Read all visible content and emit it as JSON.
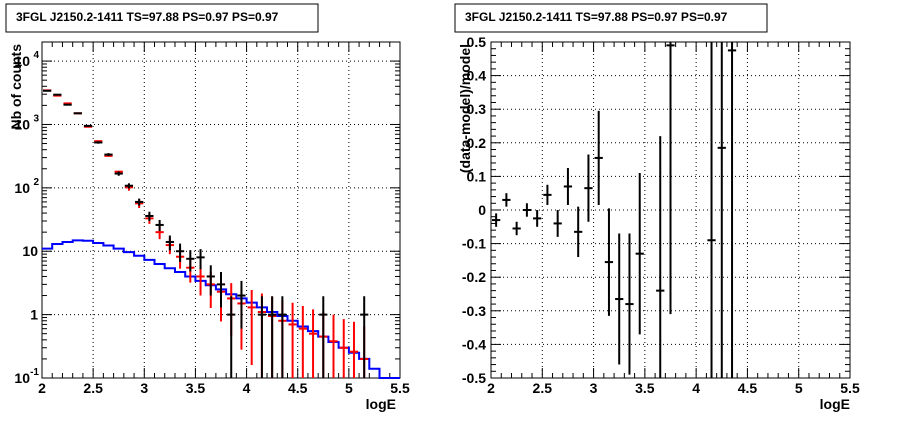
{
  "chart_data": [
    {
      "type": "line",
      "title": "3FGL J2150.2-1411 TS=97.88 PS=0.97 PS=0.97",
      "xlabel": "logE",
      "ylabel": "Nb of counts",
      "xlim": [
        2,
        5.5
      ],
      "ylim": [
        0.1,
        20000
      ],
      "yscale": "log",
      "grid": true,
      "xticks": [
        "2",
        "2.5",
        "3",
        "3.5",
        "4",
        "4.5",
        "5",
        "5.5"
      ],
      "yticks": [
        {
          "value": 0.1,
          "label": "10",
          "exp": "-1"
        },
        {
          "value": 1,
          "label": "1",
          "exp": ""
        },
        {
          "value": 10,
          "label": "10",
          "exp": ""
        },
        {
          "value": 100,
          "label": "10",
          "exp": "2"
        },
        {
          "value": 1000,
          "label": "10",
          "exp": "3"
        },
        {
          "value": 10000,
          "label": "10",
          "exp": "4"
        }
      ],
      "bin_width": 0.1,
      "series": [
        {
          "color": "#0000ff",
          "style": "step",
          "x": [
            2.05,
            2.15,
            2.25,
            2.35,
            2.45,
            2.55,
            2.65,
            2.75,
            2.85,
            2.95,
            3.05,
            3.15,
            3.25,
            3.35,
            3.45,
            3.55,
            3.65,
            3.75,
            3.85,
            3.95,
            4.05,
            4.15,
            4.25,
            4.35,
            4.45,
            4.55,
            4.65,
            4.75,
            4.85,
            4.95,
            5.05,
            5.15,
            5.25,
            5.35,
            5.45
          ],
          "y": [
            11.0,
            13.0,
            14.0,
            14.8,
            14.6,
            13.5,
            12.3,
            11.0,
            9.7,
            8.5,
            7.3,
            6.3,
            5.4,
            4.7,
            4.0,
            3.4,
            2.9,
            2.5,
            2.1,
            1.8,
            1.55,
            1.3,
            1.1,
            0.95,
            0.8,
            0.65,
            0.55,
            0.45,
            0.37,
            0.3,
            0.25,
            0.2,
            0.14,
            0.1,
            0.1
          ]
        },
        {
          "color": "#ff0000",
          "style": "markers",
          "x": [
            2.05,
            2.15,
            2.25,
            2.35,
            2.45,
            2.55,
            2.65,
            2.75,
            2.85,
            2.95,
            3.05,
            3.15,
            3.25,
            3.35,
            3.45,
            3.55,
            3.65,
            3.75,
            3.85,
            3.95,
            4.05,
            4.15,
            4.25,
            4.35,
            4.45,
            4.55,
            4.65,
            4.75,
            4.85,
            4.95,
            5.05,
            5.15
          ],
          "y": [
            3450,
            2850,
            2150,
            1500,
            920,
            545,
            320,
            180,
            102,
            57,
            33,
            20,
            12.5,
            8.2,
            5.5,
            4.0,
            3.0,
            2.3,
            1.8,
            1.5,
            1.3,
            1.1,
            0.95,
            0.8,
            0.7,
            0.6,
            0.5,
            0.45,
            0.38,
            0.3,
            0.26,
            0.2
          ],
          "err": [
            0,
            0,
            0,
            0,
            0,
            0,
            0,
            0,
            12,
            9,
            6,
            4.5,
            3.5,
            2.9,
            2.3,
            2.0,
            1.73,
            1.52,
            1.34,
            1.22,
            1.14,
            1.05,
            0.97,
            0.89,
            0.84,
            0.77,
            0.71,
            0.67,
            0.62,
            0.55,
            0.51,
            0.45
          ]
        },
        {
          "color": "#000000",
          "style": "markers",
          "x": [
            2.05,
            2.15,
            2.25,
            2.35,
            2.45,
            2.55,
            2.65,
            2.75,
            2.85,
            2.95,
            3.05,
            3.15,
            3.25,
            3.35,
            3.45,
            3.55,
            3.65,
            3.75,
            3.85,
            3.95,
            4.15,
            4.25,
            4.35,
            4.75,
            5.15
          ],
          "y": [
            3400,
            2950,
            2050,
            1500,
            950,
            520,
            335,
            168,
            108,
            60,
            36,
            26,
            14,
            10,
            7.6,
            8,
            4,
            3,
            1,
            2,
            1,
            1,
            1,
            1,
            1
          ],
          "err": [
            60,
            55,
            45,
            40,
            30,
            23,
            18,
            13,
            10,
            7.7,
            6,
            5.1,
            3.7,
            3.2,
            2.8,
            2.8,
            2.0,
            1.7,
            0.95,
            1.4,
            0.95,
            0.95,
            0.95,
            0.95,
            0.95
          ]
        }
      ]
    },
    {
      "type": "scatter",
      "title": "3FGL J2150.2-1411 TS=97.88 PS=0.97 PS=0.97",
      "xlabel": "logE",
      "ylabel": "(data-model)/model",
      "xlim": [
        2,
        5.5
      ],
      "ylim": [
        -0.5,
        0.5
      ],
      "grid": true,
      "xticks": [
        "2",
        "2.5",
        "3",
        "3.5",
        "4",
        "4.5",
        "5",
        "5.5"
      ],
      "yticks": [
        "-0.5",
        "-0.4",
        "-0.3",
        "-0.2",
        "-0.1",
        "0",
        "0.1",
        "0.2",
        "0.3",
        "0.4",
        "0.5"
      ],
      "bin_width": 0.1,
      "series": [
        {
          "color": "#000000",
          "x": [
            2.05,
            2.15,
            2.25,
            2.35,
            2.45,
            2.55,
            2.65,
            2.75,
            2.85,
            2.95,
            3.05,
            3.15,
            3.25,
            3.35,
            3.45,
            3.65,
            3.75,
            4.15,
            4.25,
            4.35
          ],
          "y": [
            -0.03,
            0.03,
            -0.055,
            0.0,
            -0.025,
            0.045,
            -0.04,
            0.07,
            -0.065,
            0.065,
            0.155,
            -0.155,
            -0.265,
            -0.28,
            -0.13,
            -0.24,
            0.49,
            -0.09,
            0.185,
            0.475
          ],
          "err": [
            0.02,
            0.02,
            0.02,
            0.02,
            0.025,
            0.03,
            0.04,
            0.055,
            0.075,
            0.1,
            0.14,
            0.16,
            0.195,
            0.21,
            0.24,
            0.46,
            0.8,
            1.0,
            1.0,
            1.0
          ]
        }
      ]
    }
  ]
}
